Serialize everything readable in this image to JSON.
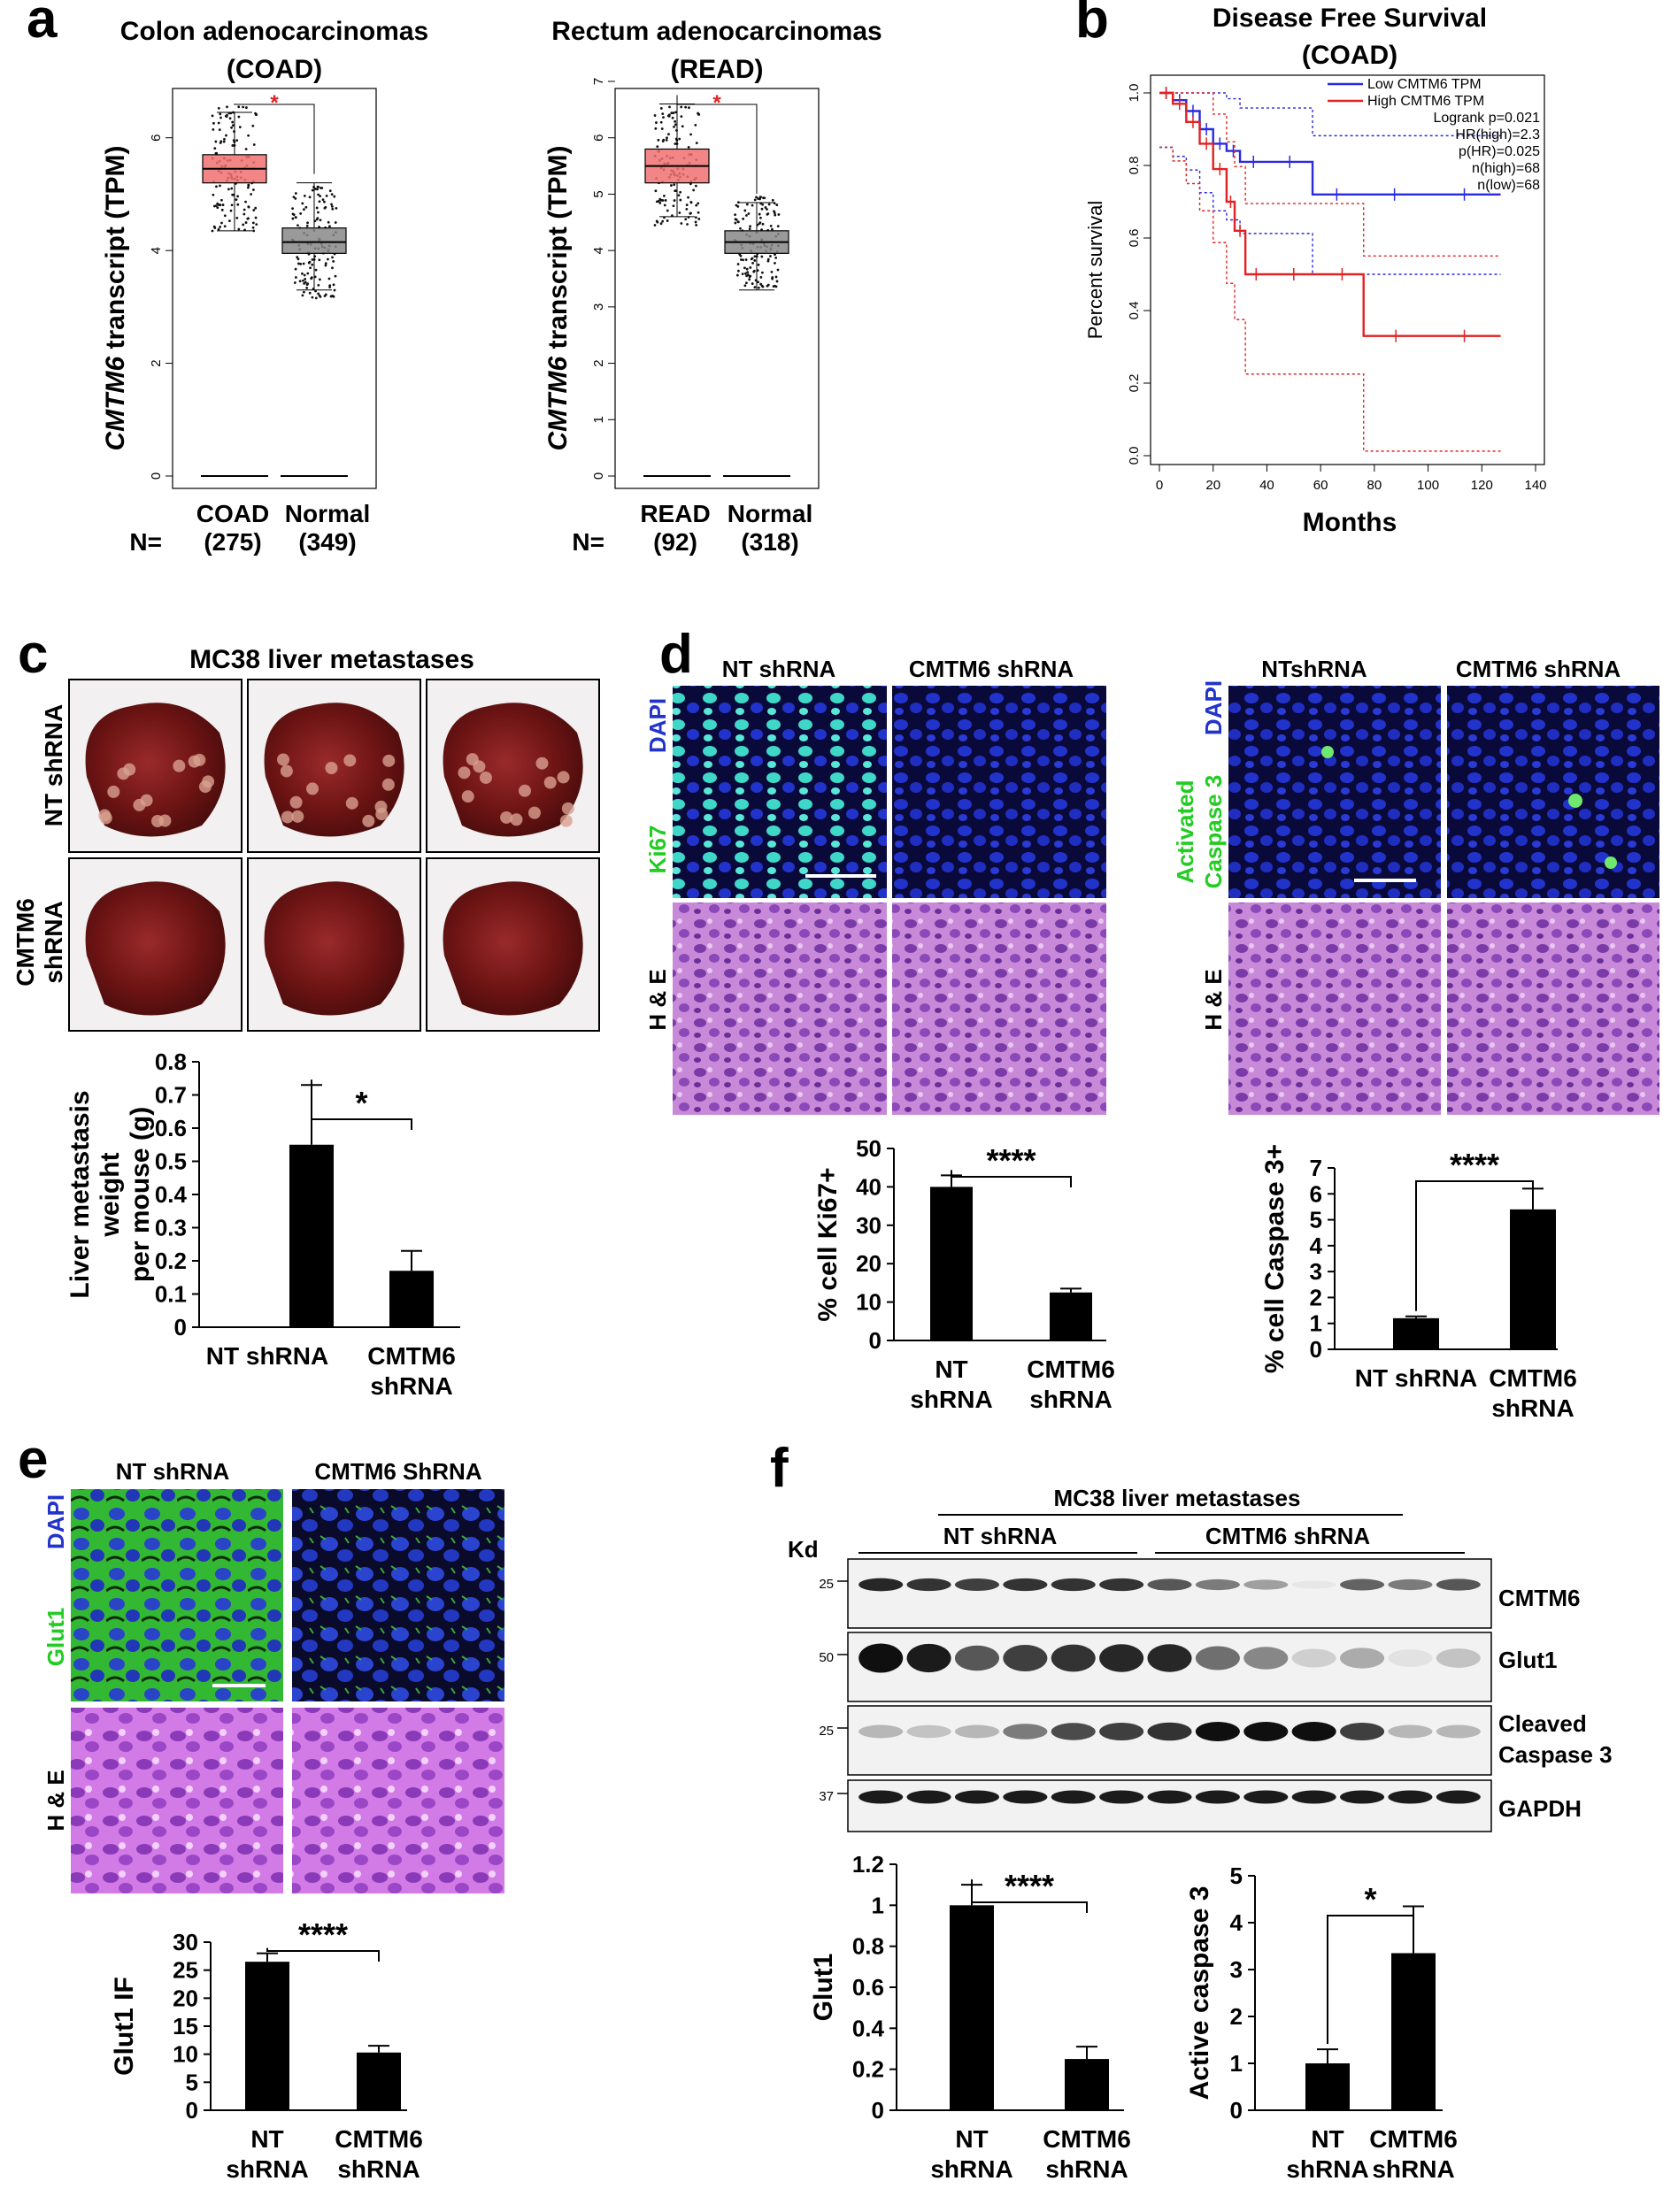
{
  "panels": {
    "a": {
      "letter": "a",
      "left": {
        "title_line1": "Colon adenocarcinomas",
        "title_line2": "(COAD)",
        "ylabel_gene": "CMTM6",
        "ylabel_rest": " transcript (TPM)",
        "yticks": [
          "0",
          "2",
          "4",
          "6"
        ],
        "groups": [
          "COAD",
          "Normal"
        ],
        "n_label": "N=",
        "n_values": [
          "(275)",
          "(349)"
        ],
        "sig": "*"
      },
      "right": {
        "title_line1": "Rectum adenocarcinomas",
        "title_line2": "(READ)",
        "ylabel_gene": "CMTM6",
        "ylabel_rest": " transcript (TPM)",
        "yticks": [
          "0",
          "1",
          "2",
          "3",
          "4",
          "5",
          "6",
          "7"
        ],
        "groups": [
          "READ",
          "Normal"
        ],
        "n_label": "N=",
        "n_values": [
          "(92)",
          "(318)"
        ],
        "sig": "*"
      }
    },
    "b": {
      "letter": "b",
      "title_line1": "Disease Free Survival",
      "title_line2": "(COAD)",
      "ylabel": "Percent survival",
      "xlabel": "Months",
      "xticks": [
        "0",
        "20",
        "40",
        "60",
        "80",
        "100",
        "120",
        "140"
      ],
      "yticks": [
        "0.0",
        "0.2",
        "0.4",
        "0.6",
        "0.8",
        "1.0"
      ],
      "legend": [
        "Low CMTM6 TPM",
        "High CMTM6 TPM"
      ],
      "stats": [
        "Logrank p=0.021",
        "HR(high)=2.3",
        "p(HR)=0.025",
        "n(high)=68",
        "n(low)=68"
      ],
      "colors": {
        "low": "#2a2ae0",
        "high": "#e02222"
      }
    },
    "c": {
      "letter": "c",
      "title": "MC38 liver metastases",
      "row_labels": [
        "NT shRNA",
        "CMTM6",
        "shRNA"
      ],
      "ylabel": [
        "Liver metastasis",
        "weight",
        "per mouse (g)"
      ],
      "yticks": [
        "0",
        "0.1",
        "0.2",
        "0.3",
        "0.4",
        "0.5",
        "0.6",
        "0.7",
        "0.8"
      ],
      "xlabels": [
        [
          "NT shRNA"
        ],
        [
          "CMTM6",
          "shRNA"
        ]
      ],
      "sig": "*"
    },
    "d": {
      "letter": "d",
      "left": {
        "col_labels": [
          "NT shRNA",
          "CMTM6 shRNA"
        ],
        "stain1": "DAPI",
        "stain2": "Ki67",
        "he": "H & E",
        "ylabel": "% cell Ki67+",
        "yticks": [
          "0",
          "10",
          "20",
          "30",
          "40",
          "50"
        ],
        "xlabels": [
          [
            "NT",
            "shRNA"
          ],
          [
            "CMTM6",
            "shRNA"
          ]
        ],
        "sig": "****"
      },
      "right": {
        "col_labels": [
          "NTshRNA",
          "CMTM6 shRNA"
        ],
        "stain1": "DAPI",
        "stain2a": "Activated",
        "stain2b": "Caspase 3",
        "he": "H & E",
        "ylabel": "% cell Caspase 3+",
        "yticks": [
          "0",
          "1",
          "2",
          "3",
          "4",
          "5",
          "6",
          "7"
        ],
        "xlabels": [
          [
            "NT shRNA"
          ],
          [
            "CMTM6",
            "shRNA"
          ]
        ],
        "sig": "****"
      }
    },
    "e": {
      "letter": "e",
      "col_labels": [
        "NT shRNA",
        "CMTM6 ShRNA"
      ],
      "stain1": "DAPI",
      "stain2": "Glut1",
      "he": "H & E",
      "ylabel": "Glut1 IF",
      "yticks": [
        "0",
        "5",
        "10",
        "15",
        "20",
        "25",
        "30"
      ],
      "xlabels": [
        [
          "NT",
          "shRNA"
        ],
        [
          "CMTM6",
          "shRNA"
        ]
      ],
      "sig": "****"
    },
    "f": {
      "letter": "f",
      "title": "MC38 liver metastases",
      "group_labels": [
        "NT shRNA",
        "CMTM6 shRNA"
      ],
      "kd": "Kd",
      "markers": [
        "25",
        "50",
        "25",
        "37"
      ],
      "bands": [
        "CMTM6",
        "Glut1",
        "Cleaved",
        "Caspase 3",
        "GAPDH"
      ],
      "left": {
        "ylabel": "Glut1",
        "yticks": [
          "0",
          "0.2",
          "0.4",
          "0.6",
          "0.8",
          "1",
          "1.2"
        ],
        "xlabels": [
          [
            "NT",
            "shRNA"
          ],
          [
            "CMTM6",
            "shRNA"
          ]
        ],
        "sig": "****"
      },
      "right": {
        "ylabel": "Active caspase 3",
        "yticks": [
          "0",
          "1",
          "2",
          "3",
          "4",
          "5"
        ],
        "xlabels": [
          [
            "NT",
            "shRNA"
          ],
          [
            "CMTM6",
            "shRNA"
          ]
        ],
        "sig": "*"
      }
    }
  },
  "chart_data": [
    {
      "id": "a-left",
      "type": "box",
      "categories": [
        "COAD",
        "Normal"
      ],
      "median": [
        5.45,
        4.15
      ],
      "q1": [
        5.2,
        3.95
      ],
      "q3": [
        5.7,
        4.4
      ],
      "whisker_low": [
        4.35,
        3.3
      ],
      "whisker_high": [
        6.45,
        5.2
      ],
      "ylim": [
        0,
        7
      ],
      "ylabel": "CMTM6 transcript (TPM)"
    },
    {
      "id": "a-right",
      "type": "box",
      "categories": [
        "READ",
        "Normal"
      ],
      "median": [
        5.5,
        4.15
      ],
      "q1": [
        5.2,
        3.95
      ],
      "q3": [
        5.8,
        4.35
      ],
      "whisker_low": [
        4.6,
        3.3
      ],
      "whisker_high": [
        6.6,
        4.85
      ],
      "ylim": [
        0,
        7
      ],
      "ylabel": "CMTM6 transcript (TPM)"
    },
    {
      "id": "b",
      "type": "line",
      "xlabel": "Months",
      "ylabel": "Percent survival",
      "xlim": [
        0,
        140
      ],
      "ylim": [
        0,
        1
      ],
      "series": [
        {
          "name": "Low CMTM6 TPM",
          "x": [
            0,
            5,
            10,
            15,
            20,
            25,
            30,
            40,
            57,
            75,
            100,
            127
          ],
          "y": [
            1.0,
            0.98,
            0.95,
            0.9,
            0.86,
            0.84,
            0.81,
            0.81,
            0.72,
            0.72,
            0.72,
            0.72
          ]
        },
        {
          "name": "High CMTM6 TPM",
          "x": [
            0,
            5,
            10,
            15,
            20,
            25,
            28,
            32,
            40,
            60,
            76,
            100,
            127
          ],
          "y": [
            1.0,
            0.97,
            0.92,
            0.86,
            0.79,
            0.7,
            0.62,
            0.5,
            0.5,
            0.5,
            0.33,
            0.33,
            0.33
          ]
        }
      ]
    },
    {
      "id": "c",
      "type": "bar",
      "categories": [
        "NT shRNA",
        "CMTM6 shRNA"
      ],
      "values": [
        0.55,
        0.17
      ],
      "errors": [
        0.18,
        0.06
      ],
      "ylim": [
        0,
        0.8
      ],
      "ylabel": "Liver metastasis weight per mouse (g)"
    },
    {
      "id": "d-left",
      "type": "bar",
      "categories": [
        "NT shRNA",
        "CMTM6 shRNA"
      ],
      "values": [
        40,
        12.5
      ],
      "errors": [
        3,
        1
      ],
      "ylim": [
        0,
        50
      ],
      "ylabel": "% cell Ki67+"
    },
    {
      "id": "d-right",
      "type": "bar",
      "categories": [
        "NT shRNA",
        "CMTM6 shRNA"
      ],
      "values": [
        1.2,
        5.4
      ],
      "errors": [
        0.07,
        0.8
      ],
      "ylim": [
        0,
        7
      ],
      "ylabel": "% cell Caspase 3+"
    },
    {
      "id": "e",
      "type": "bar",
      "categories": [
        "NT shRNA",
        "CMTM6 shRNA"
      ],
      "values": [
        26.5,
        10.3
      ],
      "errors": [
        1.5,
        1.2
      ],
      "ylim": [
        0,
        30
      ],
      "ylabel": "Glut1 IF"
    },
    {
      "id": "f-left",
      "type": "bar",
      "categories": [
        "NT shRNA",
        "CMTM6 shRNA"
      ],
      "values": [
        1.0,
        0.25
      ],
      "errors": [
        0.1,
        0.06
      ],
      "ylim": [
        0,
        1.2
      ],
      "ylabel": "Glut1"
    },
    {
      "id": "f-right",
      "type": "bar",
      "categories": [
        "NT shRNA",
        "CMTM6 shRNA"
      ],
      "values": [
        1.0,
        3.35
      ],
      "errors": [
        0.3,
        1.0
      ],
      "ylim": [
        0,
        5
      ],
      "ylabel": "Active caspase 3"
    }
  ]
}
